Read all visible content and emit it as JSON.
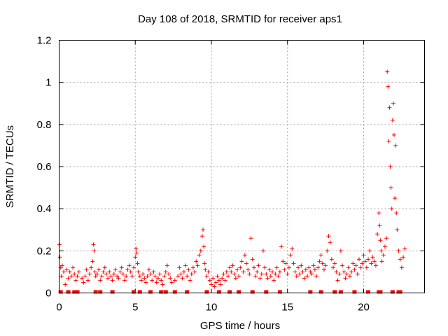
{
  "chart_data": {
    "type": "scatter",
    "title": "Day 108 of 2018, SRMTID for receiver aps1",
    "xlabel": "GPS time / hours",
    "ylabel": "SRMTID / TECUs",
    "xlim": [
      0,
      24
    ],
    "ylim": [
      0,
      1.2
    ],
    "xticks": [
      0,
      5,
      10,
      15,
      20
    ],
    "yticks": [
      0,
      0.2,
      0.4,
      0.6,
      0.8,
      1.0,
      1.2
    ],
    "xtick_labels": [
      "0",
      "5",
      "10",
      "15",
      "20"
    ],
    "ytick_labels": [
      "0",
      "0.2",
      "0.4",
      "0.6",
      "0.8",
      "1",
      "1.2"
    ],
    "grid": true,
    "marker": "+",
    "color": "#ff0000",
    "series": [
      {
        "name": "aps1",
        "x": [
          0.02,
          0.05,
          0.1,
          0.15,
          0.2,
          0.3,
          0.4,
          0.5,
          0.6,
          0.7,
          0.8,
          0.9,
          1.0,
          1.1,
          1.2,
          1.3,
          1.5,
          1.6,
          1.7,
          1.8,
          1.9,
          2.0,
          2.1,
          2.2,
          2.25,
          2.3,
          2.35,
          2.4,
          2.5,
          2.6,
          2.7,
          2.8,
          2.9,
          3.0,
          3.1,
          3.2,
          3.3,
          3.4,
          3.5,
          3.6,
          3.7,
          3.8,
          3.9,
          4.0,
          4.1,
          4.2,
          4.3,
          4.4,
          4.5,
          4.6,
          4.7,
          4.8,
          4.9,
          5.0,
          5.05,
          5.1,
          5.15,
          5.2,
          5.3,
          5.4,
          5.5,
          5.6,
          5.7,
          5.8,
          5.9,
          6.0,
          6.1,
          6.2,
          6.3,
          6.4,
          6.5,
          6.6,
          6.7,
          6.8,
          6.9,
          7.0,
          7.1,
          7.2,
          7.3,
          7.4,
          7.6,
          7.8,
          7.9,
          8.0,
          8.1,
          8.2,
          8.3,
          8.4,
          8.5,
          8.6,
          8.7,
          8.8,
          8.9,
          9.0,
          9.1,
          9.2,
          9.3,
          9.4,
          9.45,
          9.5,
          9.55,
          9.6,
          9.7,
          9.8,
          9.9,
          10.0,
          10.1,
          10.2,
          10.3,
          10.4,
          10.5,
          10.6,
          10.7,
          10.8,
          10.9,
          11.0,
          11.1,
          11.2,
          11.3,
          11.4,
          11.5,
          11.6,
          11.7,
          11.8,
          11.9,
          12.0,
          12.1,
          12.2,
          12.3,
          12.4,
          12.5,
          12.6,
          12.7,
          12.8,
          12.9,
          13.0,
          13.1,
          13.2,
          13.3,
          13.4,
          13.5,
          13.6,
          13.7,
          13.8,
          13.9,
          14.0,
          14.1,
          14.2,
          14.3,
          14.4,
          14.5,
          14.6,
          14.7,
          14.8,
          14.9,
          15.0,
          15.1,
          15.2,
          15.3,
          15.4,
          15.5,
          15.6,
          15.7,
          15.8,
          15.9,
          16.0,
          16.1,
          16.2,
          16.3,
          16.4,
          16.5,
          16.6,
          16.7,
          16.8,
          16.9,
          17.0,
          17.1,
          17.2,
          17.3,
          17.4,
          17.5,
          17.6,
          17.7,
          17.8,
          17.9,
          18.0,
          18.1,
          18.2,
          18.3,
          18.4,
          18.5,
          18.6,
          18.7,
          18.8,
          18.9,
          19.0,
          19.1,
          19.2,
          19.3,
          19.4,
          19.5,
          19.6,
          19.7,
          19.8,
          19.9,
          20.0,
          20.1,
          20.2,
          20.3,
          20.4,
          20.5,
          20.6,
          20.7,
          20.8,
          20.9,
          21.0,
          21.05,
          21.1,
          21.15,
          21.2,
          21.3,
          21.4,
          21.5,
          21.55,
          21.6,
          21.65,
          21.7,
          21.75,
          21.8,
          21.85,
          21.9,
          21.95,
          22.0,
          22.05,
          22.1,
          22.15,
          22.2,
          22.3,
          22.4,
          22.5,
          22.6,
          22.7
        ],
        "y": [
          0.23,
          0.17,
          0.12,
          0.08,
          0.13,
          0.1,
          0.04,
          0.11,
          0.07,
          0.1,
          0.08,
          0.12,
          0.09,
          0.06,
          0.08,
          0.1,
          0.07,
          0.05,
          0.08,
          0.11,
          0.06,
          0.09,
          0.12,
          0.15,
          0.23,
          0.2,
          0.1,
          0.08,
          0.09,
          0.11,
          0.06,
          0.08,
          0.1,
          0.12,
          0.09,
          0.07,
          0.1,
          0.08,
          0.06,
          0.09,
          0.11,
          0.08,
          0.07,
          0.1,
          0.12,
          0.09,
          0.06,
          0.08,
          0.11,
          0.13,
          0.1,
          0.08,
          0.12,
          0.17,
          0.21,
          0.19,
          0.14,
          0.1,
          0.08,
          0.06,
          0.09,
          0.07,
          0.05,
          0.08,
          0.11,
          0.09,
          0.06,
          0.1,
          0.08,
          0.05,
          0.07,
          0.09,
          0.06,
          0.04,
          0.08,
          0.1,
          0.13,
          0.09,
          0.07,
          0.05,
          0.06,
          0.08,
          0.12,
          0.09,
          0.07,
          0.1,
          0.13,
          0.08,
          0.11,
          0.06,
          0.09,
          0.12,
          0.1,
          0.15,
          0.13,
          0.18,
          0.2,
          0.27,
          0.3,
          0.22,
          0.14,
          0.11,
          0.08,
          0.1,
          0.06,
          0.04,
          0.07,
          0.03,
          0.05,
          0.08,
          0.06,
          0.04,
          0.07,
          0.09,
          0.06,
          0.1,
          0.08,
          0.12,
          0.1,
          0.13,
          0.09,
          0.07,
          0.11,
          0.08,
          0.12,
          0.15,
          0.1,
          0.18,
          0.14,
          0.11,
          0.09,
          0.26,
          0.16,
          0.12,
          0.08,
          0.1,
          0.13,
          0.07,
          0.09,
          0.2,
          0.12,
          0.09,
          0.07,
          0.11,
          0.08,
          0.1,
          0.06,
          0.09,
          0.12,
          0.08,
          0.1,
          0.22,
          0.15,
          0.11,
          0.14,
          0.09,
          0.12,
          0.18,
          0.21,
          0.14,
          0.1,
          0.08,
          0.12,
          0.09,
          0.13,
          0.1,
          0.07,
          0.11,
          0.08,
          0.12,
          0.1,
          0.09,
          0.13,
          0.11,
          0.08,
          0.12,
          0.15,
          0.18,
          0.14,
          0.11,
          0.13,
          0.2,
          0.27,
          0.24,
          0.16,
          0.12,
          0.14,
          0.1,
          0.06,
          0.09,
          0.2,
          0.13,
          0.1,
          0.07,
          0.09,
          0.12,
          0.08,
          0.1,
          0.14,
          0.11,
          0.13,
          0.09,
          0.16,
          0.12,
          0.14,
          0.18,
          0.15,
          0.12,
          0.16,
          0.2,
          0.14,
          0.17,
          0.15,
          0.13,
          0.28,
          0.38,
          0.32,
          0.25,
          0.2,
          0.15,
          0.18,
          0.22,
          0.26,
          1.05,
          0.98,
          0.72,
          0.88,
          0.6,
          0.5,
          0.4,
          0.82,
          0.9,
          0.75,
          0.45,
          0.7,
          0.38,
          0.3,
          0.2,
          0.16,
          0.12,
          0.17,
          0.21
        ]
      }
    ],
    "zero_markers_x": [
      0.1,
      0.6,
      1.0,
      1.2,
      2.4,
      2.7,
      3.5,
      4.9,
      5.3,
      6.0,
      6.7,
      7.0,
      7.6,
      8.4,
      9.7,
      10.5,
      11.2,
      11.8,
      12.7,
      13.6,
      14.5,
      16.5,
      17.2,
      18.1,
      18.5,
      19.4,
      20.3,
      21.0,
      21.1,
      21.9,
      22.3,
      22.4
    ]
  }
}
